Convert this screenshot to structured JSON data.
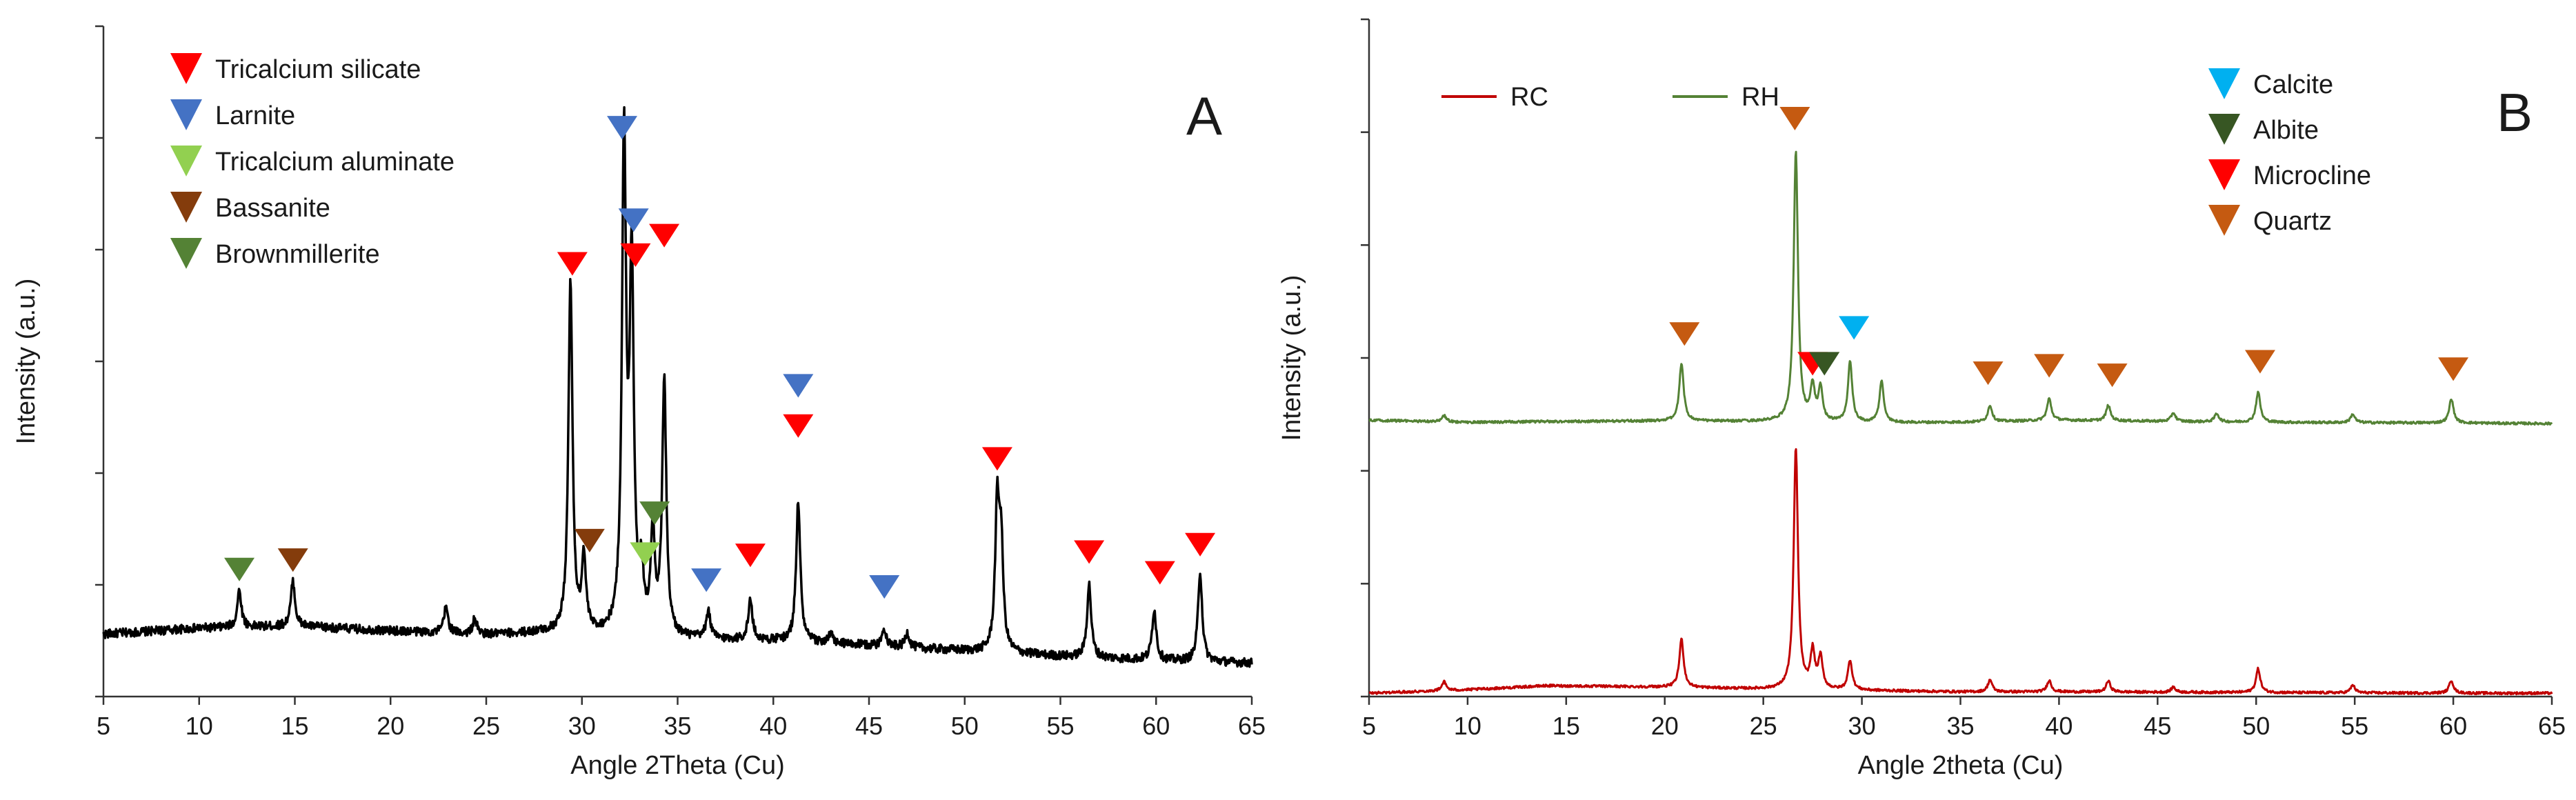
{
  "chart_data": [
    {
      "panel": "A",
      "type": "line",
      "xlabel": "Angle 2Theta (Cu)",
      "ylabel": "Intensity (a.u.)",
      "xlim": [
        5,
        65
      ],
      "ylim": [
        0,
        100
      ],
      "xticks": [
        "5",
        "10",
        "15",
        "20",
        "25",
        "30",
        "35",
        "40",
        "45",
        "50",
        "55",
        "60",
        "65"
      ],
      "y_tick_labels_shown": false,
      "grid": false,
      "series": [
        {
          "color": "#000000",
          "baseline": [
            [
              5,
              9.3
            ],
            [
              10,
              10.2
            ],
            [
              15,
              10.5
            ],
            [
              20,
              9.8
            ],
            [
              25,
              9.2
            ],
            [
              28,
              9.5
            ],
            [
              35,
              8.6
            ],
            [
              40,
              8.3
            ],
            [
              45,
              7.6
            ],
            [
              50,
              6.8
            ],
            [
              55,
              6.0
            ],
            [
              60,
              5.4
            ],
            [
              65,
              5.0
            ]
          ],
          "peaks": [
            [
              12.1,
              15.8
            ],
            [
              14.9,
              17.2
            ],
            [
              22.9,
              13.3
            ],
            [
              24.4,
              11.5
            ],
            [
              29.4,
              61.5
            ],
            [
              30.1,
              20.0
            ],
            [
              32.2,
              82.0
            ],
            [
              32.6,
              62.6
            ],
            [
              33.1,
              17.2
            ],
            [
              33.7,
              24.0
            ],
            [
              34.3,
              46.4
            ],
            [
              36.6,
              12.6
            ],
            [
              38.8,
              14.3
            ],
            [
              41.3,
              29.1
            ],
            [
              43.0,
              9.2
            ],
            [
              45.8,
              10.2
            ],
            [
              47.0,
              9.5
            ],
            [
              51.7,
              27.4
            ],
            [
              51.9,
              21.6
            ],
            [
              56.5,
              16.7
            ],
            [
              59.9,
              13.0
            ],
            [
              62.3,
              18.6
            ]
          ]
        }
      ],
      "markers": [
        {
          "phase": "Brownmillerite",
          "x": 12.1,
          "y": 17.2
        },
        {
          "phase": "Bassanite",
          "x": 14.9,
          "y": 18.6
        },
        {
          "phase": "Tricalcium silicate",
          "x": 29.5,
          "y": 62.8
        },
        {
          "phase": "Bassanite",
          "x": 30.4,
          "y": 21.5
        },
        {
          "phase": "Larnite",
          "x": 32.1,
          "y": 83.1
        },
        {
          "phase": "Larnite",
          "x": 32.7,
          "y": 69.3
        },
        {
          "phase": "Tricalcium silicate",
          "x": 32.8,
          "y": 64.1
        },
        {
          "phase": "Tricalcium aluminate",
          "x": 33.3,
          "y": 19.5
        },
        {
          "phase": "Brownmillerite",
          "x": 33.8,
          "y": 25.6
        },
        {
          "phase": "Tricalcium silicate",
          "x": 34.3,
          "y": 67.0
        },
        {
          "phase": "Larnite",
          "x": 36.5,
          "y": 15.6
        },
        {
          "phase": "Tricalcium silicate",
          "x": 38.8,
          "y": 19.3
        },
        {
          "phase": "Larnite",
          "x": 41.3,
          "y": 44.6
        },
        {
          "phase": "Tricalcium silicate",
          "x": 41.3,
          "y": 38.6
        },
        {
          "phase": "Larnite",
          "x": 45.8,
          "y": 14.6
        },
        {
          "phase": "Tricalcium silicate",
          "x": 51.7,
          "y": 33.7
        },
        {
          "phase": "Tricalcium silicate",
          "x": 56.5,
          "y": 19.8
        },
        {
          "phase": "Tricalcium silicate",
          "x": 60.2,
          "y": 16.7
        },
        {
          "phase": "Tricalcium silicate",
          "x": 62.3,
          "y": 20.9
        }
      ],
      "legend": {
        "placement": "top-left",
        "entries": [
          {
            "label": "Tricalcium silicate",
            "color": "#ff0000"
          },
          {
            "label": "Larnite",
            "color": "#4472c4"
          },
          {
            "label": "Tricalcium aluminate",
            "color": "#92d050"
          },
          {
            "label": "Bassanite",
            "color": "#843c0c"
          },
          {
            "label": "Brownmillerite",
            "color": "#548235"
          }
        ]
      }
    },
    {
      "panel": "B",
      "type": "line",
      "xlabel": "Angle 2theta (Cu)",
      "ylabel": "Intensity (a.u.)",
      "xlim": [
        5,
        65
      ],
      "ylim": [
        0,
        100
      ],
      "xticks": [
        "5",
        "10",
        "15",
        "20",
        "25",
        "30",
        "35",
        "40",
        "45",
        "50",
        "55",
        "60",
        "65"
      ],
      "y_tick_labels_shown": false,
      "grid": false,
      "series": [
        {
          "name": "RC",
          "color": "#c00000",
          "baseline": [
            [
              5,
              0.5
            ],
            [
              10,
              1.0
            ],
            [
              14,
              1.6
            ],
            [
              20,
              1.4
            ],
            [
              25,
              1.1
            ],
            [
              30,
              0.9
            ],
            [
              35,
              0.7
            ],
            [
              40,
              0.7
            ],
            [
              50,
              0.6
            ],
            [
              60,
              0.5
            ],
            [
              65,
              0.5
            ]
          ],
          "peaks": [
            [
              8.8,
              2.2
            ],
            [
              20.85,
              8.5
            ],
            [
              26.65,
              36.7
            ],
            [
              27.5,
              6.5
            ],
            [
              27.9,
              5.6
            ],
            [
              29.4,
              5.3
            ],
            [
              36.5,
              2.5
            ],
            [
              39.5,
              2.4
            ],
            [
              42.5,
              2.3
            ],
            [
              45.8,
              1.4
            ],
            [
              50.1,
              4.1
            ],
            [
              54.9,
              1.7
            ],
            [
              59.9,
              2.4
            ]
          ]
        },
        {
          "name": "RH",
          "color": "#548235",
          "baseline": [
            [
              5,
              40.8
            ],
            [
              10,
              40.5
            ],
            [
              14,
              40.6
            ],
            [
              20,
              40.7
            ],
            [
              25,
              40.6
            ],
            [
              30,
              40.4
            ],
            [
              35,
              40.5
            ],
            [
              40,
              40.8
            ],
            [
              50,
              40.5
            ],
            [
              60,
              40.4
            ],
            [
              65,
              40.3
            ]
          ],
          "peaks": [
            [
              8.8,
              41.5
            ],
            [
              20.85,
              49.3
            ],
            [
              26.65,
              80.6
            ],
            [
              27.5,
              45.5
            ],
            [
              27.9,
              45.3
            ],
            [
              29.4,
              49.4
            ],
            [
              31.0,
              46.5
            ],
            [
              36.5,
              43.0
            ],
            [
              39.5,
              44.0
            ],
            [
              42.5,
              43.0
            ],
            [
              45.8,
              41.9
            ],
            [
              48.0,
              41.8
            ],
            [
              50.1,
              45.0
            ],
            [
              54.9,
              41.7
            ],
            [
              59.9,
              44.0
            ]
          ]
        }
      ],
      "markers": [
        {
          "phase": "Quartz",
          "x": 21.0,
          "y": 51.8
        },
        {
          "phase": "Quartz",
          "x": 26.6,
          "y": 83.6
        },
        {
          "phase": "Microcline",
          "x": 27.5,
          "y": 47.4
        },
        {
          "phase": "Albite",
          "x": 28.1,
          "y": 47.4
        },
        {
          "phase": "Calcite",
          "x": 29.6,
          "y": 52.7
        },
        {
          "phase": "Quartz",
          "x": 36.4,
          "y": 46.0
        },
        {
          "phase": "Quartz",
          "x": 39.5,
          "y": 47.1
        },
        {
          "phase": "Quartz",
          "x": 42.7,
          "y": 45.7
        },
        {
          "phase": "Quartz",
          "x": 50.2,
          "y": 47.7
        },
        {
          "phase": "Quartz",
          "x": 60.0,
          "y": 46.6
        }
      ],
      "series_legend": {
        "placement": "top-left"
      },
      "legend": {
        "placement": "top-right",
        "entries": [
          {
            "label": "Calcite",
            "color": "#00b0f0"
          },
          {
            "label": "Albite",
            "color": "#375623"
          },
          {
            "label": "Microcline",
            "color": "#ff0000"
          },
          {
            "label": "Quartz",
            "color": "#c55a11"
          }
        ]
      }
    }
  ]
}
